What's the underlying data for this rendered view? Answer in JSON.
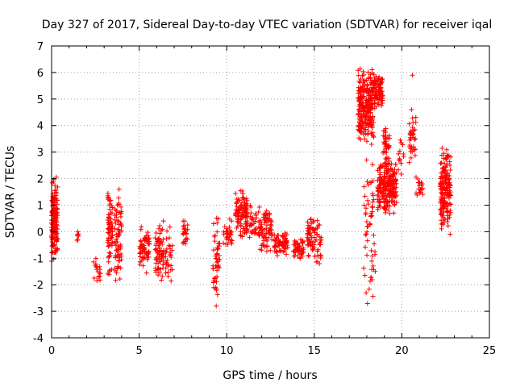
{
  "chart_data": {
    "type": "scatter",
    "title": "Day 327 of 2017, Sidereal Day-to-day VTEC variation (SDTVAR) for receiver iqal",
    "xlabel": "GPS time / hours",
    "ylabel": "SDTVAR / TECUs",
    "xlim": [
      0,
      25
    ],
    "ylim": [
      -4,
      7
    ],
    "xticks": [
      0,
      5,
      10,
      15,
      20,
      25
    ],
    "yticks": [
      -4,
      -3,
      -2,
      -1,
      0,
      1,
      2,
      3,
      4,
      5,
      6,
      7
    ],
    "grid": true,
    "marker": "+",
    "color": "#ff0000",
    "clusters": [
      {
        "x": [
          0.0,
          0.35
        ],
        "y": [
          -1.3,
          2.2
        ],
        "n": 160
      },
      {
        "x": [
          1.45,
          1.55
        ],
        "y": [
          -0.6,
          0.0
        ],
        "n": 6
      },
      {
        "x": [
          2.4,
          2.8
        ],
        "y": [
          -2.1,
          -0.9
        ],
        "n": 18
      },
      {
        "x": [
          3.2,
          3.5
        ],
        "y": [
          -1.8,
          1.8
        ],
        "n": 70
      },
      {
        "x": [
          3.6,
          4.0
        ],
        "y": [
          -2.1,
          1.6
        ],
        "n": 70
      },
      {
        "x": [
          5.0,
          5.6
        ],
        "y": [
          -1.6,
          0.4
        ],
        "n": 70
      },
      {
        "x": [
          5.9,
          6.4
        ],
        "y": [
          -2.1,
          0.7
        ],
        "n": 70
      },
      {
        "x": [
          6.5,
          6.9
        ],
        "y": [
          -2.1,
          0.3
        ],
        "n": 30
      },
      {
        "x": [
          7.5,
          7.8
        ],
        "y": [
          -0.6,
          0.5
        ],
        "n": 25
      },
      {
        "x": [
          9.2,
          9.6
        ],
        "y": [
          -2.8,
          0.9
        ],
        "n": 45
      },
      {
        "x": [
          9.8,
          10.3
        ],
        "y": [
          -0.8,
          0.5
        ],
        "n": 30
      },
      {
        "x": [
          10.5,
          11.2
        ],
        "y": [
          -0.4,
          1.7
        ],
        "n": 110
      },
      {
        "x": [
          11.3,
          11.7
        ],
        "y": [
          -0.3,
          1.1
        ],
        "n": 30
      },
      {
        "x": [
          11.8,
          12.6
        ],
        "y": [
          -0.8,
          1.0
        ],
        "n": 80
      },
      {
        "x": [
          12.7,
          13.5
        ],
        "y": [
          -1.0,
          0.0
        ],
        "n": 70
      },
      {
        "x": [
          13.8,
          14.4
        ],
        "y": [
          -1.1,
          -0.2
        ],
        "n": 50
      },
      {
        "x": [
          14.6,
          15.4
        ],
        "y": [
          -1.3,
          0.8
        ],
        "n": 80
      },
      {
        "x": [
          17.5,
          18.4
        ],
        "y": [
          3.2,
          6.3
        ],
        "n": 260
      },
      {
        "x": [
          18.4,
          18.9
        ],
        "y": [
          4.5,
          6.0
        ],
        "n": 90
      },
      {
        "x": [
          17.8,
          18.5
        ],
        "y": [
          -3.0,
          3.5
        ],
        "n": 60
      },
      {
        "x": [
          18.6,
          19.7
        ],
        "y": [
          0.6,
          2.8
        ],
        "n": 230
      },
      {
        "x": [
          18.9,
          19.3
        ],
        "y": [
          2.5,
          4.0
        ],
        "n": 40
      },
      {
        "x": [
          19.8,
          20.1
        ],
        "y": [
          2.0,
          3.6
        ],
        "n": 15
      },
      {
        "x": [
          20.4,
          20.8
        ],
        "y": [
          2.5,
          4.5
        ],
        "n": 35
      },
      {
        "x": [
          20.8,
          21.2
        ],
        "y": [
          1.2,
          2.1
        ],
        "n": 20
      },
      {
        "x": [
          22.2,
          22.8
        ],
        "y": [
          -0.2,
          3.3
        ],
        "n": 180
      }
    ],
    "outliers": [
      [
        20.6,
        5.9
      ],
      [
        20.55,
        4.6
      ],
      [
        9.4,
        -2.15
      ],
      [
        9.4,
        -2.8
      ],
      [
        1.5,
        0.0
      ],
      [
        3.85,
        1.6
      ],
      [
        6.65,
        -1.3
      ]
    ]
  }
}
